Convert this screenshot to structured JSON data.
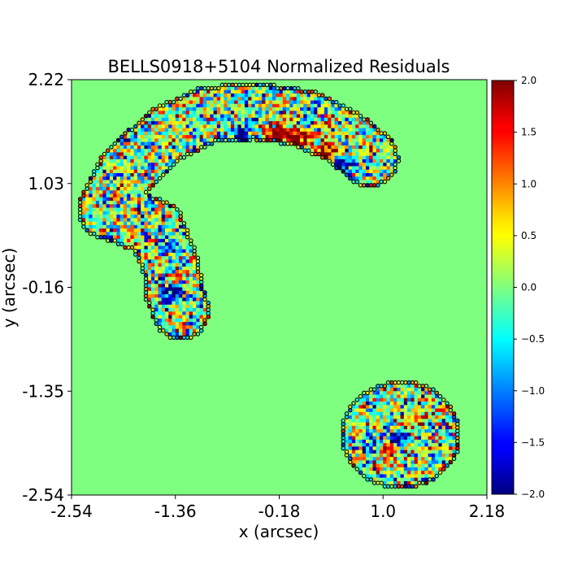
{
  "chart_data": {
    "type": "heatmap",
    "title": "BELLS0918+5104 Normalized Residuals",
    "xlabel": "x (arcsec)",
    "ylabel": "y (arcsec)",
    "xlim": [
      -2.54,
      2.18
    ],
    "ylim": [
      -2.54,
      2.22
    ],
    "x_ticks": [
      "-2.54",
      "-1.36",
      "-0.18",
      "1.0",
      "2.18"
    ],
    "x_tick_values": [
      -2.54,
      -1.36,
      -0.18,
      1.0,
      2.18
    ],
    "y_ticks": [
      "2.22",
      "1.03",
      "-0.16",
      "-1.35",
      "-2.54"
    ],
    "y_tick_values": [
      2.22,
      1.03,
      -0.16,
      -1.35,
      -2.54
    ],
    "colormap": "jet",
    "background_value": 0.0,
    "background_color": "#7fff7f",
    "mask_outline_color": "#000000",
    "colorbar": {
      "range": [
        -2.0,
        2.0
      ],
      "ticks": [
        "2.0",
        "1.5",
        "1.0",
        "0.5",
        "0.0",
        "−0.5",
        "−1.0",
        "−1.5",
        "−2.0"
      ],
      "tick_values": [
        2.0,
        1.5,
        1.0,
        0.5,
        0.0,
        -0.5,
        -1.0,
        -1.5,
        -2.0
      ]
    },
    "masked_regions": [
      {
        "name": "arc",
        "shape": "curved-band",
        "centerline": [
          [
            -2.14,
            0.72
          ],
          [
            -1.92,
            1.18
          ],
          [
            -1.45,
            1.6
          ],
          [
            -1.0,
            1.82
          ],
          [
            -0.45,
            1.86
          ],
          [
            0.1,
            1.78
          ],
          [
            0.55,
            1.56
          ],
          [
            0.85,
            1.32
          ]
        ],
        "upper_tail": [
          [
            -1.58,
            0.52
          ],
          [
            -1.4,
            0.05
          ],
          [
            -1.38,
            -0.2
          ],
          [
            -1.3,
            -0.43
          ]
        ],
        "half_width": 0.33,
        "noise_amplitude": 0.9,
        "features": [
          {
            "x": -0.2,
            "y": 1.6,
            "value": 1.8,
            "spread": 0.1
          },
          {
            "x": 0.05,
            "y": 1.55,
            "value": 1.6,
            "spread": 0.08
          },
          {
            "x": 0.35,
            "y": 1.42,
            "value": 1.9,
            "spread": 0.08
          },
          {
            "x": 0.55,
            "y": 1.22,
            "value": -1.8,
            "spread": 0.08
          },
          {
            "x": -0.6,
            "y": 1.62,
            "value": -1.7,
            "spread": 0.07
          },
          {
            "x": -1.35,
            "y": -0.05,
            "value": 1.9,
            "spread": 0.07
          },
          {
            "x": -1.38,
            "y": -0.2,
            "value": -1.9,
            "spread": 0.09
          },
          {
            "x": -1.45,
            "y": 0.35,
            "value": -1.4,
            "spread": 0.06
          },
          {
            "x": -1.3,
            "y": 0.95,
            "value": 1.5,
            "spread": 0.06
          },
          {
            "x": -1.22,
            "y": 1.1,
            "value": -1.5,
            "spread": 0.06
          }
        ]
      },
      {
        "name": "counter-image",
        "shape": "ellipse",
        "center": [
          1.2,
          -1.85
        ],
        "radii": [
          0.68,
          0.62
        ],
        "noise_amplitude": 0.9,
        "features": [
          {
            "x": 1.15,
            "y": -1.9,
            "value": -2.0,
            "spread": 0.06
          },
          {
            "x": 1.05,
            "y": -2.0,
            "value": 1.8,
            "spread": 0.05
          },
          {
            "x": 1.42,
            "y": -1.7,
            "value": 1.3,
            "spread": 0.06
          },
          {
            "x": 0.85,
            "y": -1.95,
            "value": -1.2,
            "spread": 0.07
          }
        ]
      }
    ]
  }
}
